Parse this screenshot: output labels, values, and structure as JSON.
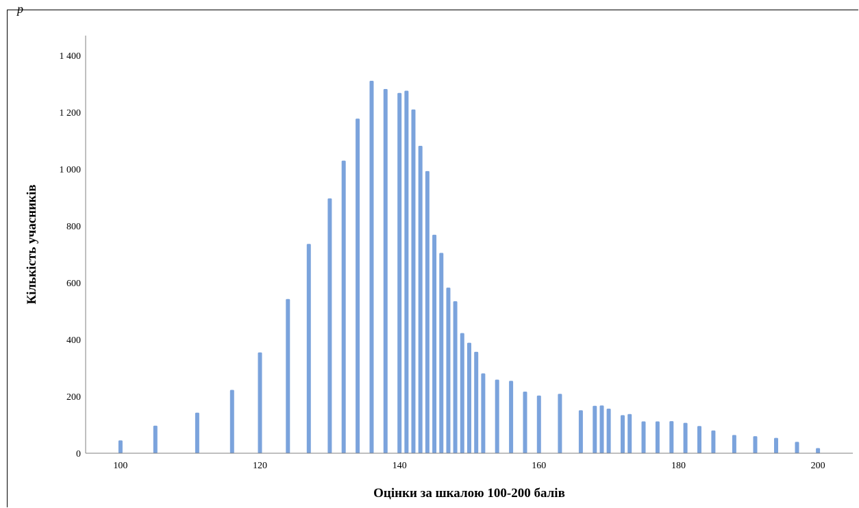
{
  "corner_text": "p",
  "chart_data": {
    "type": "bar",
    "title": "",
    "xlabel": "Оцінки за шкалою 100-200 балів",
    "ylabel": "Кількість учасників",
    "xlim": [
      95,
      205
    ],
    "ylim": [
      0,
      1470
    ],
    "x_ticks": [
      100,
      120,
      140,
      160,
      180,
      200
    ],
    "y_ticks": [
      0,
      200,
      400,
      600,
      800,
      1000,
      1200,
      1400
    ],
    "y_tick_labels": [
      "0",
      "200",
      "400",
      "600",
      "800",
      "1 000",
      "1 200",
      "1 400"
    ],
    "grid": false,
    "bar_color": "#7ba3dc",
    "x": [
      100,
      105,
      111,
      116,
      120,
      124,
      127,
      130,
      132,
      134,
      136,
      138,
      140,
      141,
      142,
      143,
      144,
      145,
      146,
      147,
      148,
      149,
      150,
      151,
      152,
      154,
      156,
      158,
      160,
      163,
      166,
      168,
      169,
      170,
      172,
      173,
      175,
      177,
      179,
      181,
      183,
      185,
      188,
      191,
      194,
      197,
      200
    ],
    "values": [
      45,
      97,
      143,
      223,
      355,
      543,
      737,
      897,
      1030,
      1178,
      1311,
      1282,
      1268,
      1276,
      1210,
      1082,
      993,
      769,
      705,
      583,
      535,
      423,
      389,
      357,
      281,
      259,
      255,
      217,
      203,
      209,
      151,
      167,
      168,
      157,
      134,
      138,
      112,
      112,
      113,
      107,
      96,
      80,
      64,
      60,
      54,
      40,
      18
    ]
  }
}
